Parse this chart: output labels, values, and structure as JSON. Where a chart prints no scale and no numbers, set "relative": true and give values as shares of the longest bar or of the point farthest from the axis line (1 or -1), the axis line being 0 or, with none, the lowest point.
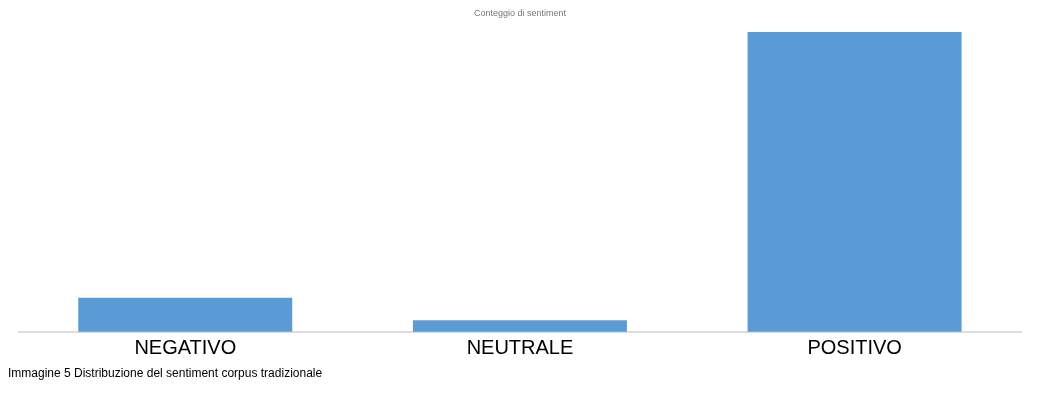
{
  "chart_data": {
    "type": "bar",
    "title": "Conteggio di sentiment",
    "categories": [
      "NEGATIVO",
      "NEUTRALE",
      "POSITIVO"
    ],
    "values": [
      0.114,
      0.039,
      1
    ],
    "color": "#5b9bd5",
    "relative": true,
    "annotations": [
      "Immagine 5 Distribuzione del sentiment corpus tradizionale"
    ]
  }
}
